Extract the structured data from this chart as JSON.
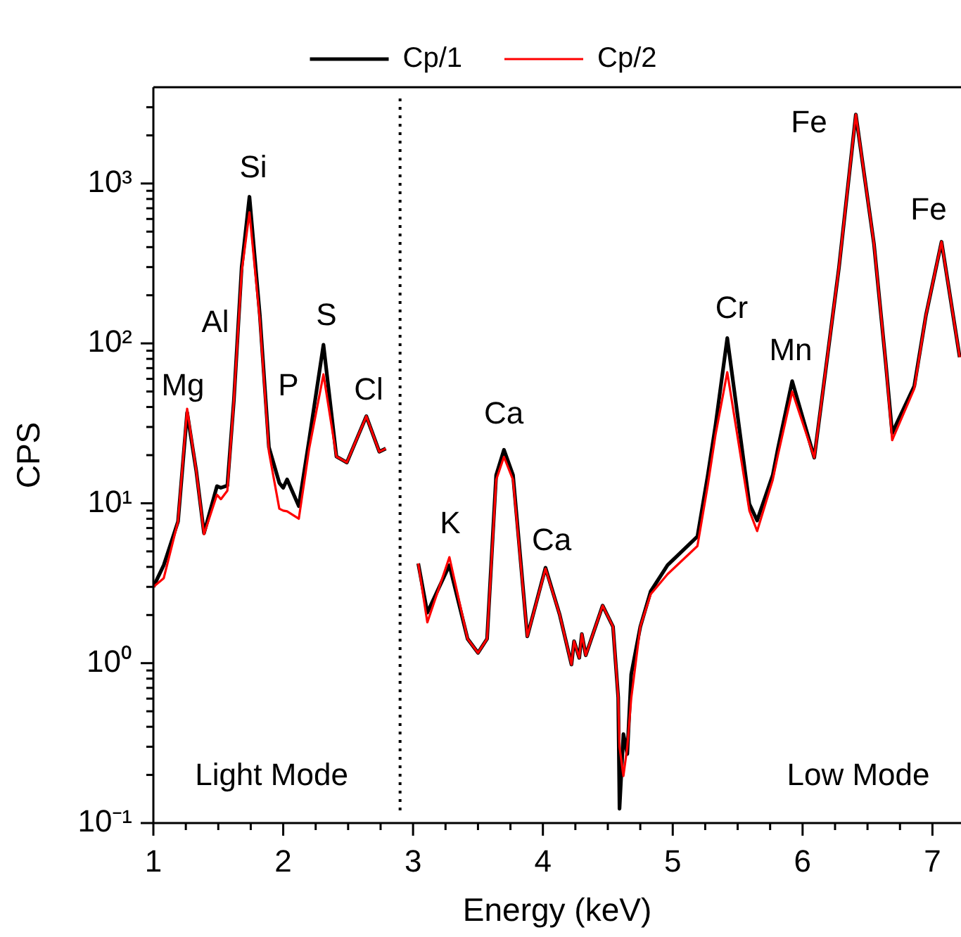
{
  "chart_data": {
    "type": "line",
    "xlabel": "Energy (keV)",
    "ylabel": "CPS",
    "log": "y",
    "legend": "top",
    "grid": false,
    "marker": "none",
    "line_style": "solid",
    "xlim": [
      1,
      7.22
    ],
    "ylim": [
      0.1,
      4000
    ],
    "xticks": [
      1,
      {
        "value": 1.25,
        "label": null
      },
      {
        "value": 1.5,
        "label": null
      },
      {
        "value": 1.75,
        "label": null
      },
      2,
      {
        "value": 2.25,
        "label": null
      },
      {
        "value": 2.5,
        "label": null
      },
      {
        "value": 2.75,
        "label": null
      },
      3,
      {
        "value": 3.25,
        "label": null
      },
      {
        "value": 3.5,
        "label": null
      },
      {
        "value": 3.75,
        "label": null
      },
      4,
      {
        "value": 4.25,
        "label": null
      },
      {
        "value": 4.5,
        "label": null
      },
      {
        "value": 4.75,
        "label": null
      },
      5,
      {
        "value": 5.25,
        "label": null
      },
      {
        "value": 5.5,
        "label": null
      },
      {
        "value": 5.75,
        "label": null
      },
      6,
      {
        "value": 6.25,
        "label": null
      },
      {
        "value": 6.5,
        "label": null
      },
      {
        "value": 6.75,
        "label": null
      },
      7
    ],
    "yticks": [
      {
        "value": 0.1,
        "label": "10⁻¹"
      },
      {
        "value": 0.2,
        "label": null
      },
      {
        "value": 0.3,
        "label": null
      },
      {
        "value": 0.4,
        "label": null
      },
      {
        "value": 0.5,
        "label": null
      },
      {
        "value": 0.6,
        "label": null
      },
      {
        "value": 0.7,
        "label": null
      },
      {
        "value": 0.8,
        "label": null
      },
      {
        "value": 0.9,
        "label": null
      },
      {
        "value": 1,
        "label": "10⁰"
      },
      {
        "value": 2,
        "label": null
      },
      {
        "value": 3,
        "label": null
      },
      {
        "value": 4,
        "label": null
      },
      {
        "value": 5,
        "label": null
      },
      {
        "value": 6,
        "label": null
      },
      {
        "value": 7,
        "label": null
      },
      {
        "value": 8,
        "label": null
      },
      {
        "value": 9,
        "label": null
      },
      {
        "value": 10,
        "label": "10¹"
      },
      {
        "value": 20,
        "label": null
      },
      {
        "value": 30,
        "label": null
      },
      {
        "value": 40,
        "label": null
      },
      {
        "value": 50,
        "label": null
      },
      {
        "value": 60,
        "label": null
      },
      {
        "value": 70,
        "label": null
      },
      {
        "value": 80,
        "label": null
      },
      {
        "value": 90,
        "label": null
      },
      {
        "value": 100,
        "label": "10²"
      },
      {
        "value": 200,
        "label": null
      },
      {
        "value": 300,
        "label": null
      },
      {
        "value": 400,
        "label": null
      },
      {
        "value": 500,
        "label": null
      },
      {
        "value": 600,
        "label": null
      },
      {
        "value": 700,
        "label": null
      },
      {
        "value": 800,
        "label": null
      },
      {
        "value": 900,
        "label": null
      },
      {
        "value": 1000,
        "label": "10³"
      },
      {
        "value": 2000,
        "label": null
      },
      {
        "value": 3000,
        "label": null
      }
    ],
    "x": [
      1.0,
      1.08,
      1.19,
      1.26,
      1.33,
      1.39,
      1.49,
      1.52,
      1.57,
      1.62,
      1.68,
      1.74,
      1.82,
      1.89,
      1.97,
      2.0,
      2.03,
      2.12,
      2.2,
      2.31,
      2.41,
      2.49,
      2.64,
      2.74,
      2.79,
      2.9,
      3.04,
      3.11,
      3.28,
      3.42,
      3.5,
      3.57,
      3.64,
      3.7,
      3.77,
      3.88,
      4.02,
      4.13,
      4.22,
      4.24,
      4.28,
      4.3,
      4.33,
      4.46,
      4.54,
      4.58,
      4.59,
      4.62,
      4.65,
      4.68,
      4.75,
      4.83,
      4.96,
      5.19,
      5.27,
      5.33,
      5.42,
      5.59,
      5.65,
      5.77,
      5.81,
      5.92,
      6.09,
      6.28,
      6.41,
      6.55,
      6.64,
      6.69,
      6.86,
      6.95,
      7.07,
      7.21
    ],
    "series": [
      {
        "name": "Cp/1",
        "color": "#000000",
        "values": [
          3.0,
          4.1,
          7.7,
          37,
          16,
          6.5,
          12.8,
          12.5,
          12.9,
          44,
          300,
          826,
          150,
          22.4,
          13.4,
          12.5,
          14.1,
          9.6,
          25,
          98,
          19.6,
          18,
          35,
          21,
          22,
          null,
          4.2,
          2.07,
          4.1,
          1.42,
          1.16,
          1.42,
          15,
          21.6,
          15,
          1.47,
          3.95,
          2.0,
          0.98,
          1.37,
          1.08,
          1.52,
          1.12,
          2.29,
          1.69,
          0.61,
          0.123,
          0.36,
          0.27,
          0.85,
          1.69,
          2.81,
          4.1,
          6.2,
          15,
          31,
          108,
          9.9,
          7.8,
          15,
          22,
          58,
          19.3,
          297,
          2700,
          417,
          76,
          27.5,
          54,
          150,
          432,
          82
        ]
      },
      {
        "name": "Cp/2",
        "color": "#ff0000",
        "values": [
          3.0,
          3.4,
          7.7,
          39,
          16,
          6.4,
          11.3,
          10.6,
          12,
          44,
          280,
          660,
          140,
          21,
          9.25,
          9.0,
          8.9,
          8.0,
          22,
          64,
          19.6,
          18,
          35,
          21,
          22,
          null,
          4.2,
          1.8,
          4.6,
          1.42,
          1.16,
          1.42,
          14,
          19.5,
          14,
          1.47,
          3.9,
          2.0,
          0.98,
          1.37,
          1.08,
          1.52,
          1.12,
          2.29,
          1.69,
          0.61,
          0.3,
          0.197,
          0.3,
          0.6,
          1.69,
          2.7,
          3.6,
          5.4,
          13,
          27,
          66,
          9.0,
          6.7,
          14,
          20,
          50,
          19.3,
          297,
          2700,
          417,
          76,
          24.8,
          52,
          150,
          432,
          82
        ]
      }
    ],
    "ref_lines": [
      {
        "axis": "x",
        "value": 2.9,
        "line_style": "dotted",
        "color": "#000000"
      }
    ],
    "annotations": [
      "Mg",
      "Al",
      "Si",
      "P",
      "S",
      "Cl",
      "K",
      "Ca",
      "Ca",
      "Cr",
      "Mn",
      "Fe",
      "Fe",
      "Light Mode",
      "Low Mode"
    ]
  }
}
